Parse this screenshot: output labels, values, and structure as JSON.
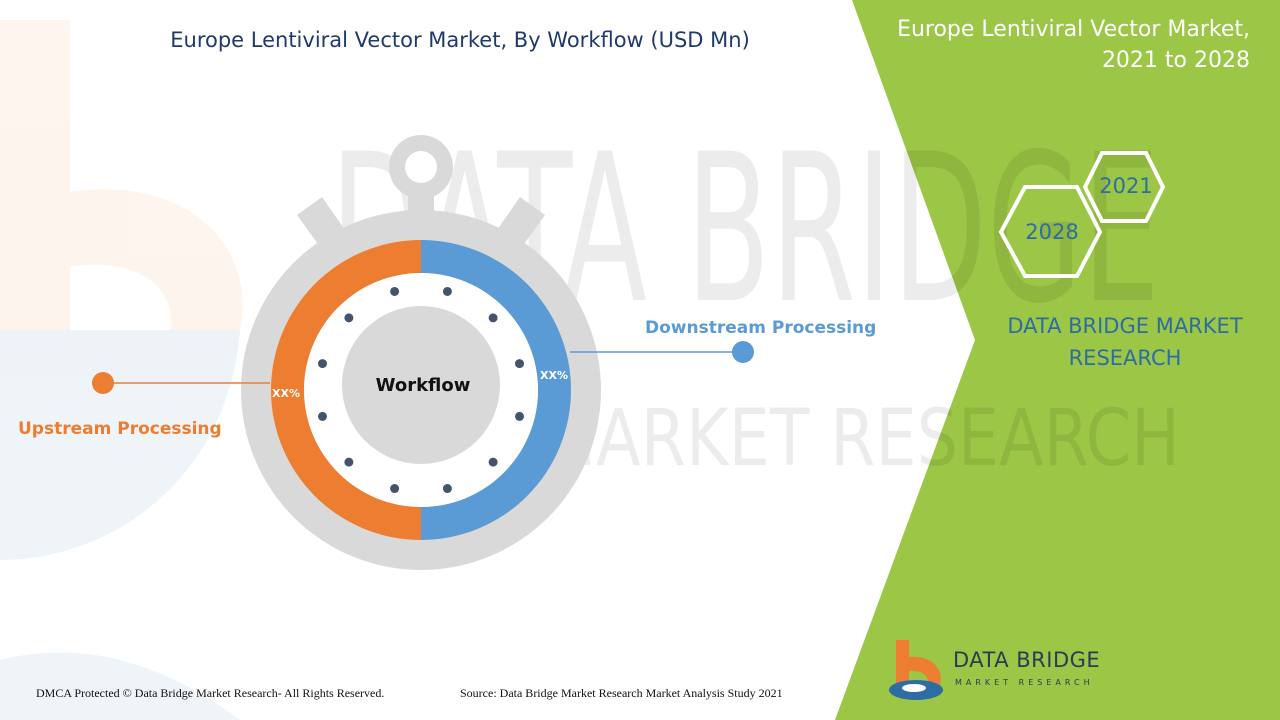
{
  "header": {
    "title": "Europe Lentiviral Vector Market, By Workflow (USD Mn)",
    "right_title_line1": "Europe Lentiviral Vector Market,",
    "right_title_line2": "2021 to 2028"
  },
  "chart_data": {
    "type": "pie",
    "title": "Europe Lentiviral Vector Market, By Workflow (USD Mn)",
    "center_label": "Workflow",
    "categories": [
      "Upstream Processing",
      "Downstream Processing"
    ],
    "value_labels": [
      "XX%",
      "XX%"
    ],
    "colors": [
      "#ed7d31",
      "#5b9bd5"
    ]
  },
  "years": {
    "start": "2021",
    "end": "2028"
  },
  "brand": {
    "line1": "DATA BRIDGE MARKET",
    "line2": "RESEARCH",
    "logo_name": "DATA BRIDGE",
    "logo_sub": "MARKET RESEARCH"
  },
  "watermark": {
    "line1": "DATA BRIDGE",
    "line2": "MARKET RESEARCH"
  },
  "footer": {
    "copyright": "DMCA Protected © Data Bridge Market Research- All Rights Reserved.",
    "source": "Source: Data Bridge Market Research Market Analysis Study 2021"
  },
  "colors": {
    "accent_green": "#9bc646",
    "upstream": "#ed7d31",
    "downstream": "#5b9bd5",
    "title_blue": "#1f3a6b"
  }
}
